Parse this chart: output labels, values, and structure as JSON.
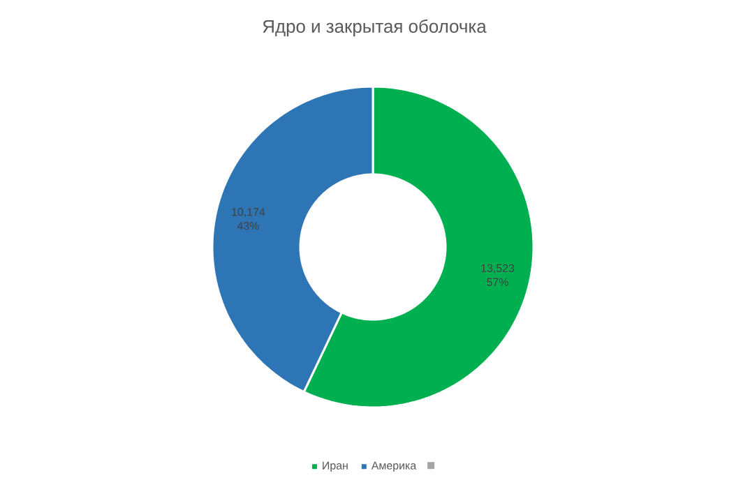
{
  "chart_data": {
    "type": "donut",
    "title": "Ядро и закрытая оболочка",
    "categories": [
      "Иран",
      "Америка",
      null
    ],
    "values": [
      13523,
      10174,
      0
    ],
    "colors": [
      "#00b050",
      "#2e75b6",
      "#a5a5a5"
    ],
    "value_labels": [
      "13,523 57%",
      "10,174 43%",
      null
    ],
    "legend": "bottom"
  }
}
